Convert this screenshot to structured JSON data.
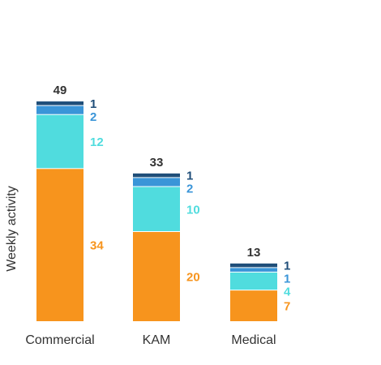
{
  "chart_data": {
    "type": "bar",
    "stacked": true,
    "categories": [
      "Commercial",
      "KAM",
      "Medical"
    ],
    "series": [
      {
        "color": "#F7941D",
        "values": [
          34,
          20,
          7
        ]
      },
      {
        "color": "#50DCDE",
        "values": [
          12,
          10,
          4
        ]
      },
      {
        "color": "#3A95D8",
        "values": [
          2,
          2,
          1
        ]
      },
      {
        "color": "#1F4E79",
        "values": [
          1,
          1,
          1
        ]
      }
    ],
    "totals": [
      49,
      33,
      13
    ],
    "title": "",
    "xlabel": "",
    "ylabel": "Weekly activity",
    "ylim": [
      0,
      49
    ],
    "grid": false,
    "legend": "none",
    "label_colors": [
      "#F7941D",
      "#50DCDE",
      "#3A95D8",
      "#1F4E79"
    ]
  }
}
